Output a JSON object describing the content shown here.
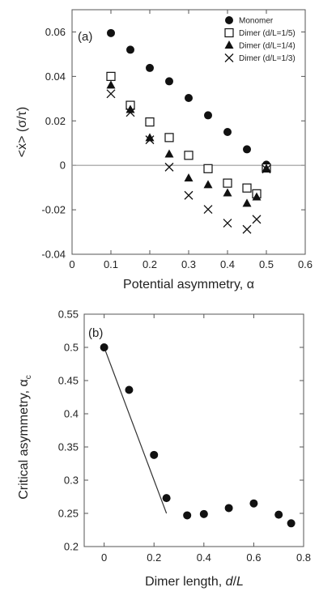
{
  "chart_data": [
    {
      "panel_label": "(a)",
      "type": "scatter",
      "xlabel": "Potential asymmetry, α",
      "ylabel": "<ẋ> (σ/τ)",
      "xlim": [
        0,
        0.6
      ],
      "ylim": [
        -0.04,
        0.07
      ],
      "x_ticks": [
        "0",
        "0.1",
        "0.2",
        "0.3",
        "0.4",
        "0.5",
        "0.6"
      ],
      "y_ticks": [
        "-0.04",
        "-0.02",
        "0",
        "0.02",
        "0.04",
        "0.06"
      ],
      "reference_line_y": 0,
      "legend_position": "top-right",
      "series": [
        {
          "name": "Monomer",
          "marker": "filled-circle",
          "points": [
            [
              0.1,
              0.0595
            ],
            [
              0.15,
              0.052
            ],
            [
              0.2,
              0.0438
            ],
            [
              0.25,
              0.0378
            ],
            [
              0.3,
              0.0303
            ],
            [
              0.35,
              0.0225
            ],
            [
              0.4,
              0.015
            ],
            [
              0.45,
              0.0072
            ],
            [
              0.5,
              0.0003
            ]
          ]
        },
        {
          "name": "Dimer (d/L=1/5)",
          "marker": "open-square",
          "points": [
            [
              0.1,
              0.04
            ],
            [
              0.15,
              0.027
            ],
            [
              0.2,
              0.0195
            ],
            [
              0.25,
              0.0125
            ],
            [
              0.3,
              0.0045
            ],
            [
              0.35,
              -0.0015
            ],
            [
              0.4,
              -0.008
            ],
            [
              0.45,
              -0.0102
            ],
            [
              0.475,
              -0.0128
            ],
            [
              0.5,
              -0.0012
            ]
          ]
        },
        {
          "name": "Dimer (d/L=1/4)",
          "marker": "filled-triangle",
          "points": [
            [
              0.1,
              0.036
            ],
            [
              0.15,
              0.025
            ],
            [
              0.2,
              0.0123
            ],
            [
              0.25,
              0.005
            ],
            [
              0.3,
              -0.0058
            ],
            [
              0.35,
              -0.0088
            ],
            [
              0.4,
              -0.0125
            ],
            [
              0.45,
              -0.0172
            ],
            [
              0.475,
              -0.0143
            ],
            [
              0.5,
              -0.0015
            ]
          ]
        },
        {
          "name": "Dimer (d/L=1/3)",
          "marker": "cross",
          "points": [
            [
              0.1,
              0.0322
            ],
            [
              0.15,
              0.0238
            ],
            [
              0.2,
              0.0115
            ],
            [
              0.25,
              -0.0008
            ],
            [
              0.3,
              -0.0135
            ],
            [
              0.35,
              -0.0198
            ],
            [
              0.4,
              -0.026
            ],
            [
              0.45,
              -0.0288
            ],
            [
              0.475,
              -0.0243
            ],
            [
              0.5,
              -0.0017
            ]
          ]
        }
      ]
    },
    {
      "panel_label": "(b)",
      "type": "scatter",
      "xlabel": "Dimer length, d/L",
      "ylabel": "Critical asymmetry, α",
      "ylabel_subscript": "c",
      "xlim": [
        -0.08,
        0.8
      ],
      "ylim": [
        0.2,
        0.55
      ],
      "x_ticks": [
        "0",
        "0.2",
        "0.4",
        "0.6",
        "0.8"
      ],
      "y_ticks": [
        "0.2",
        "0.25",
        "0.3",
        "0.35",
        "0.4",
        "0.45",
        "0.5",
        "0.55"
      ],
      "series": [
        {
          "marker": "filled-circle",
          "points": [
            [
              0,
              0.5
            ],
            [
              0.1,
              0.436
            ],
            [
              0.2,
              0.338
            ],
            [
              0.25,
              0.273
            ],
            [
              0.333,
              0.247
            ],
            [
              0.4,
              0.249
            ],
            [
              0.5,
              0.258
            ],
            [
              0.6,
              0.265
            ],
            [
              0.7,
              0.248
            ],
            [
              0.75,
              0.235
            ]
          ]
        }
      ],
      "fit_line": [
        [
          0,
          0.5
        ],
        [
          0.25,
          0.25
        ]
      ]
    }
  ]
}
